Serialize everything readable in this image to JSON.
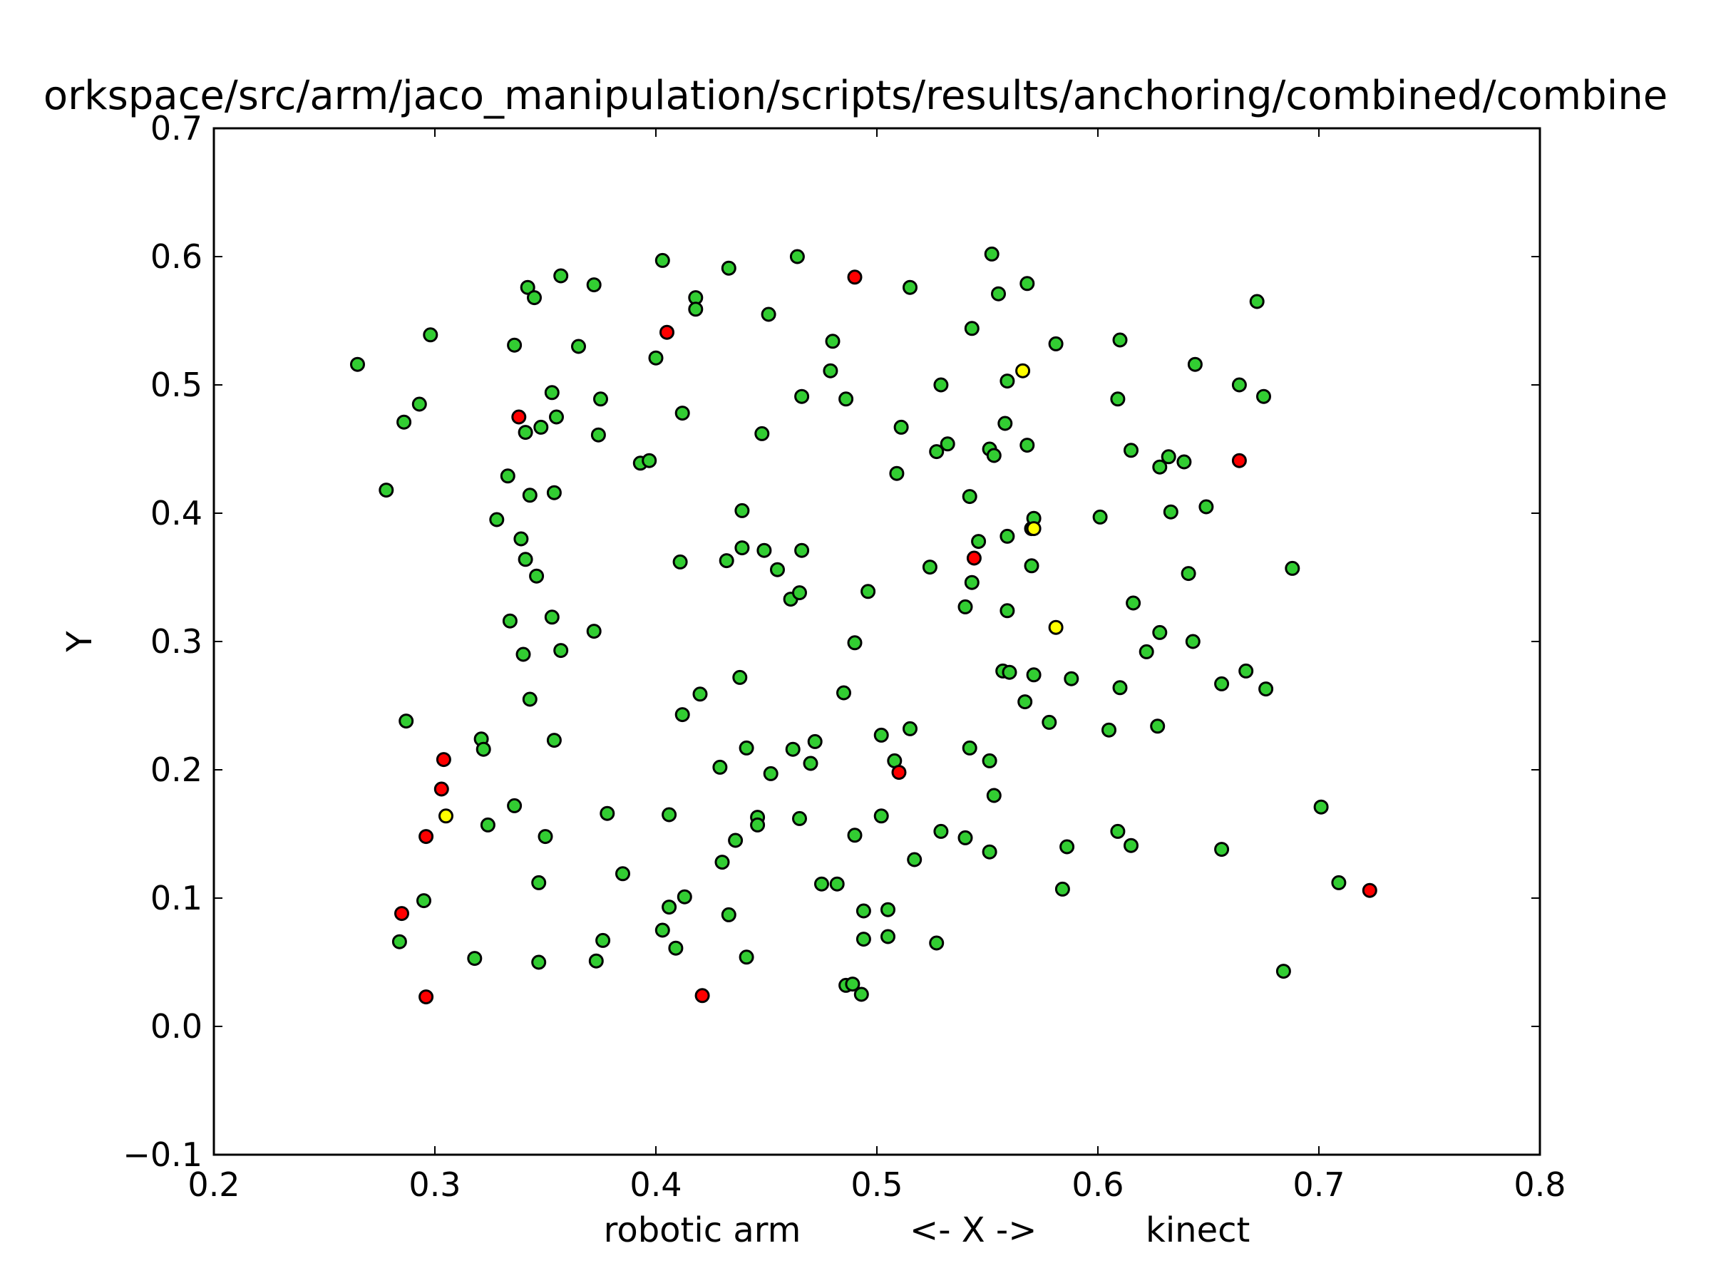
{
  "chart_data": {
    "type": "scatter",
    "title": "orkspace/src/arm/jaco_manipulation/scripts/results/anchoring/combined/combine",
    "xlabel": "robotic arm          <- X ->          kinect",
    "ylabel": "Y",
    "xlim": [
      0.2,
      0.8
    ],
    "ylim": [
      -0.1,
      0.7
    ],
    "xticks": [
      "0.2",
      "0.3",
      "0.4",
      "0.5",
      "0.6",
      "0.7",
      "0.8"
    ],
    "yticks": [
      "−0.1",
      "0.0",
      "0.1",
      "0.2",
      "0.3",
      "0.4",
      "0.5",
      "0.6",
      "0.7"
    ],
    "grid": false,
    "legend": "none",
    "series": [
      {
        "color": "#32cd32",
        "points": [
          [
            0.265,
            0.516
          ],
          [
            0.278,
            0.418
          ],
          [
            0.286,
            0.471
          ],
          [
            0.293,
            0.485
          ],
          [
            0.298,
            0.539
          ],
          [
            0.287,
            0.238
          ],
          [
            0.284,
            0.066
          ],
          [
            0.295,
            0.098
          ],
          [
            0.318,
            0.053
          ],
          [
            0.321,
            0.224
          ],
          [
            0.322,
            0.216
          ],
          [
            0.324,
            0.157
          ],
          [
            0.328,
            0.395
          ],
          [
            0.333,
            0.429
          ],
          [
            0.334,
            0.316
          ],
          [
            0.336,
            0.531
          ],
          [
            0.336,
            0.172
          ],
          [
            0.339,
            0.38
          ],
          [
            0.34,
            0.29
          ],
          [
            0.341,
            0.463
          ],
          [
            0.341,
            0.364
          ],
          [
            0.342,
            0.576
          ],
          [
            0.343,
            0.414
          ],
          [
            0.343,
            0.255
          ],
          [
            0.345,
            0.568
          ],
          [
            0.346,
            0.351
          ],
          [
            0.347,
            0.05
          ],
          [
            0.347,
            0.112
          ],
          [
            0.348,
            0.467
          ],
          [
            0.35,
            0.148
          ],
          [
            0.353,
            0.494
          ],
          [
            0.353,
            0.319
          ],
          [
            0.354,
            0.416
          ],
          [
            0.354,
            0.223
          ],
          [
            0.355,
            0.475
          ],
          [
            0.357,
            0.585
          ],
          [
            0.357,
            0.293
          ],
          [
            0.365,
            0.53
          ],
          [
            0.372,
            0.578
          ],
          [
            0.372,
            0.308
          ],
          [
            0.373,
            0.051
          ],
          [
            0.374,
            0.461
          ],
          [
            0.375,
            0.489
          ],
          [
            0.376,
            0.067
          ],
          [
            0.378,
            0.166
          ],
          [
            0.385,
            0.119
          ],
          [
            0.393,
            0.439
          ],
          [
            0.397,
            0.441
          ],
          [
            0.4,
            0.521
          ],
          [
            0.403,
            0.597
          ],
          [
            0.403,
            0.075
          ],
          [
            0.406,
            0.093
          ],
          [
            0.406,
            0.165
          ],
          [
            0.409,
            0.061
          ],
          [
            0.411,
            0.362
          ],
          [
            0.412,
            0.478
          ],
          [
            0.412,
            0.243
          ],
          [
            0.413,
            0.101
          ],
          [
            0.418,
            0.568
          ],
          [
            0.418,
            0.559
          ],
          [
            0.42,
            0.259
          ],
          [
            0.429,
            0.202
          ],
          [
            0.43,
            0.128
          ],
          [
            0.432,
            0.363
          ],
          [
            0.433,
            0.591
          ],
          [
            0.433,
            0.087
          ],
          [
            0.436,
            0.145
          ],
          [
            0.438,
            0.272
          ],
          [
            0.439,
            0.402
          ],
          [
            0.439,
            0.373
          ],
          [
            0.441,
            0.054
          ],
          [
            0.441,
            0.217
          ],
          [
            0.446,
            0.163
          ],
          [
            0.446,
            0.157
          ],
          [
            0.448,
            0.462
          ],
          [
            0.449,
            0.371
          ],
          [
            0.451,
            0.555
          ],
          [
            0.452,
            0.197
          ],
          [
            0.455,
            0.356
          ],
          [
            0.461,
            0.333
          ],
          [
            0.462,
            0.216
          ],
          [
            0.464,
            0.6
          ],
          [
            0.465,
            0.338
          ],
          [
            0.466,
            0.371
          ],
          [
            0.466,
            0.491
          ],
          [
            0.465,
            0.162
          ],
          [
            0.47,
            0.205
          ],
          [
            0.472,
            0.222
          ],
          [
            0.475,
            0.111
          ],
          [
            0.479,
            0.511
          ],
          [
            0.48,
            0.534
          ],
          [
            0.482,
            0.111
          ],
          [
            0.485,
            0.26
          ],
          [
            0.486,
            0.489
          ],
          [
            0.486,
            0.032
          ],
          [
            0.489,
            0.033
          ],
          [
            0.49,
            0.299
          ],
          [
            0.49,
            0.149
          ],
          [
            0.493,
            0.025
          ],
          [
            0.494,
            0.09
          ],
          [
            0.494,
            0.068
          ],
          [
            0.496,
            0.339
          ],
          [
            0.502,
            0.227
          ],
          [
            0.502,
            0.164
          ],
          [
            0.505,
            0.07
          ],
          [
            0.505,
            0.091
          ],
          [
            0.508,
            0.207
          ],
          [
            0.509,
            0.431
          ],
          [
            0.511,
            0.467
          ],
          [
            0.515,
            0.576
          ],
          [
            0.515,
            0.232
          ],
          [
            0.517,
            0.13
          ],
          [
            0.524,
            0.358
          ],
          [
            0.527,
            0.448
          ],
          [
            0.527,
            0.065
          ],
          [
            0.529,
            0.5
          ],
          [
            0.529,
            0.152
          ],
          [
            0.532,
            0.454
          ],
          [
            0.54,
            0.327
          ],
          [
            0.54,
            0.147
          ],
          [
            0.542,
            0.413
          ],
          [
            0.542,
            0.217
          ],
          [
            0.543,
            0.544
          ],
          [
            0.543,
            0.346
          ],
          [
            0.546,
            0.378
          ],
          [
            0.551,
            0.45
          ],
          [
            0.551,
            0.207
          ],
          [
            0.551,
            0.136
          ],
          [
            0.552,
            0.602
          ],
          [
            0.553,
            0.445
          ],
          [
            0.553,
            0.18
          ],
          [
            0.555,
            0.571
          ],
          [
            0.557,
            0.277
          ],
          [
            0.558,
            0.47
          ],
          [
            0.559,
            0.503
          ],
          [
            0.559,
            0.382
          ],
          [
            0.559,
            0.324
          ],
          [
            0.56,
            0.276
          ],
          [
            0.567,
            0.253
          ],
          [
            0.568,
            0.579
          ],
          [
            0.568,
            0.453
          ],
          [
            0.57,
            0.388
          ],
          [
            0.57,
            0.359
          ],
          [
            0.571,
            0.396
          ],
          [
            0.571,
            0.274
          ],
          [
            0.578,
            0.237
          ],
          [
            0.581,
            0.532
          ],
          [
            0.584,
            0.107
          ],
          [
            0.586,
            0.14
          ],
          [
            0.588,
            0.271
          ],
          [
            0.601,
            0.397
          ],
          [
            0.605,
            0.231
          ],
          [
            0.609,
            0.489
          ],
          [
            0.609,
            0.152
          ],
          [
            0.61,
            0.535
          ],
          [
            0.61,
            0.264
          ],
          [
            0.615,
            0.449
          ],
          [
            0.615,
            0.141
          ],
          [
            0.616,
            0.33
          ],
          [
            0.622,
            0.292
          ],
          [
            0.627,
            0.234
          ],
          [
            0.628,
            0.307
          ],
          [
            0.628,
            0.436
          ],
          [
            0.632,
            0.444
          ],
          [
            0.633,
            0.401
          ],
          [
            0.639,
            0.44
          ],
          [
            0.641,
            0.353
          ],
          [
            0.643,
            0.3
          ],
          [
            0.644,
            0.516
          ],
          [
            0.649,
            0.405
          ],
          [
            0.656,
            0.267
          ],
          [
            0.656,
            0.138
          ],
          [
            0.664,
            0.5
          ],
          [
            0.667,
            0.277
          ],
          [
            0.672,
            0.565
          ],
          [
            0.675,
            0.491
          ],
          [
            0.676,
            0.263
          ],
          [
            0.684,
            0.043
          ],
          [
            0.688,
            0.357
          ],
          [
            0.701,
            0.171
          ],
          [
            0.709,
            0.112
          ]
        ]
      },
      {
        "color": "#ff0000",
        "points": [
          [
            0.285,
            0.088
          ],
          [
            0.296,
            0.023
          ],
          [
            0.296,
            0.148
          ],
          [
            0.303,
            0.185
          ],
          [
            0.304,
            0.208
          ],
          [
            0.338,
            0.475
          ],
          [
            0.405,
            0.541
          ],
          [
            0.421,
            0.024
          ],
          [
            0.49,
            0.584
          ],
          [
            0.51,
            0.198
          ],
          [
            0.544,
            0.365
          ],
          [
            0.664,
            0.441
          ],
          [
            0.723,
            0.106
          ]
        ]
      },
      {
        "color": "#ffff00",
        "points": [
          [
            0.305,
            0.164
          ],
          [
            0.566,
            0.511
          ],
          [
            0.571,
            0.388
          ],
          [
            0.581,
            0.311
          ]
        ]
      }
    ]
  }
}
